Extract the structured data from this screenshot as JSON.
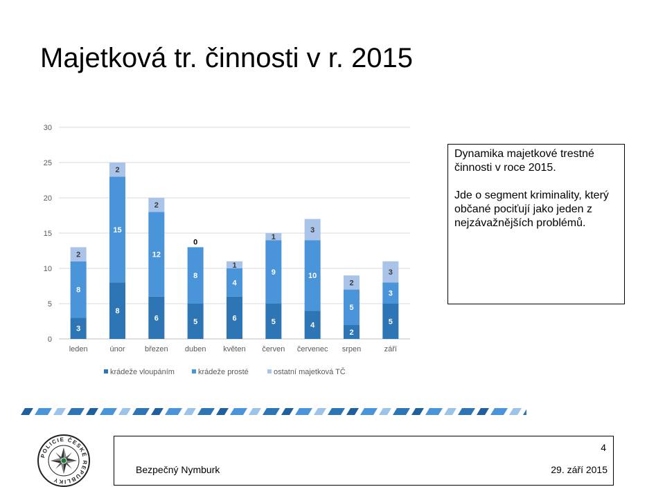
{
  "slide": {
    "title": "Majetková tr. činnosti v r. 2015",
    "note_p1": "Dynamika majetkové trestné činnosti v roce 2015.",
    "note_p2": "Jde o segment kriminality, který občané pociťují jako jeden z nejzávažnějších problémů.",
    "footer_left": "Bezpečný Nymburk",
    "footer_date": "29. září 2015",
    "page_number": "4",
    "logo_text": "POLICIE ČESKÉ REPUBLIKY",
    "logo_icon": "police-star-emblem-icon"
  },
  "chart_data": {
    "type": "bar",
    "stacked": true,
    "categories": [
      "leden",
      "únor",
      "březen",
      "duben",
      "květen",
      "červen",
      "červenec",
      "srpen",
      "září"
    ],
    "series": [
      {
        "name": "krádeže vloupáním",
        "values": [
          3,
          8,
          6,
          5,
          6,
          5,
          4,
          2,
          5
        ],
        "color": "#2e75b6"
      },
      {
        "name": "krádeže prosté",
        "values": [
          8,
          15,
          12,
          8,
          4,
          9,
          10,
          5,
          3
        ],
        "color": "#4a95d9"
      },
      {
        "name": "ostatní majetková TČ",
        "values": [
          2,
          2,
          2,
          0,
          1,
          1,
          3,
          2,
          3
        ],
        "color": "#a9c4e8"
      }
    ],
    "yticks": [
      "0",
      "5",
      "10",
      "15",
      "20",
      "25",
      "30"
    ],
    "ylim": [
      0,
      30
    ],
    "grid": true,
    "legend": "bottom",
    "label_color_dark": "#ffffff",
    "label_color_light": "#3a3a3a"
  }
}
